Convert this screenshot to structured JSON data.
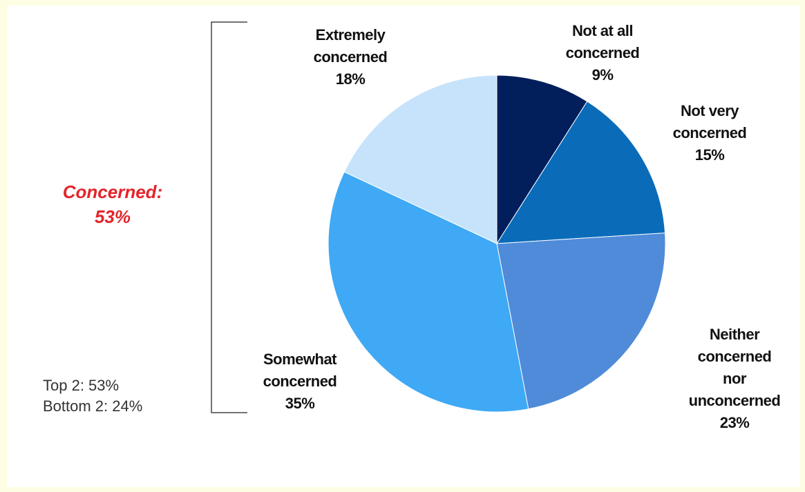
{
  "chart_data": {
    "type": "pie",
    "slices": [
      {
        "label": [
          "Not at all",
          "concerned"
        ],
        "value": 9,
        "value_text": "9%",
        "color": "#021f5c"
      },
      {
        "label": [
          "Not very",
          "concerned"
        ],
        "value": 15,
        "value_text": "15%",
        "color": "#0a6cb9"
      },
      {
        "label": [
          "Neither",
          "concerned",
          "nor",
          "unconcerned"
        ],
        "value": 23,
        "value_text": "23%",
        "color": "#4f8bd9"
      },
      {
        "label": [
          "Somewhat",
          "concerned"
        ],
        "value": 35,
        "value_text": "35%",
        "color": "#3fa9f5"
      },
      {
        "label": [
          "Extremely",
          "concerned"
        ],
        "value": 18,
        "value_text": "18%",
        "color": "#c6e3fb"
      }
    ],
    "annotation": {
      "concerned_label": "Concerned:",
      "concerned_value": "53%",
      "color": "#e3242b"
    }
  },
  "summary": {
    "top2": "Top 2:  53%",
    "bottom2": "Bottom 2:  24%"
  }
}
